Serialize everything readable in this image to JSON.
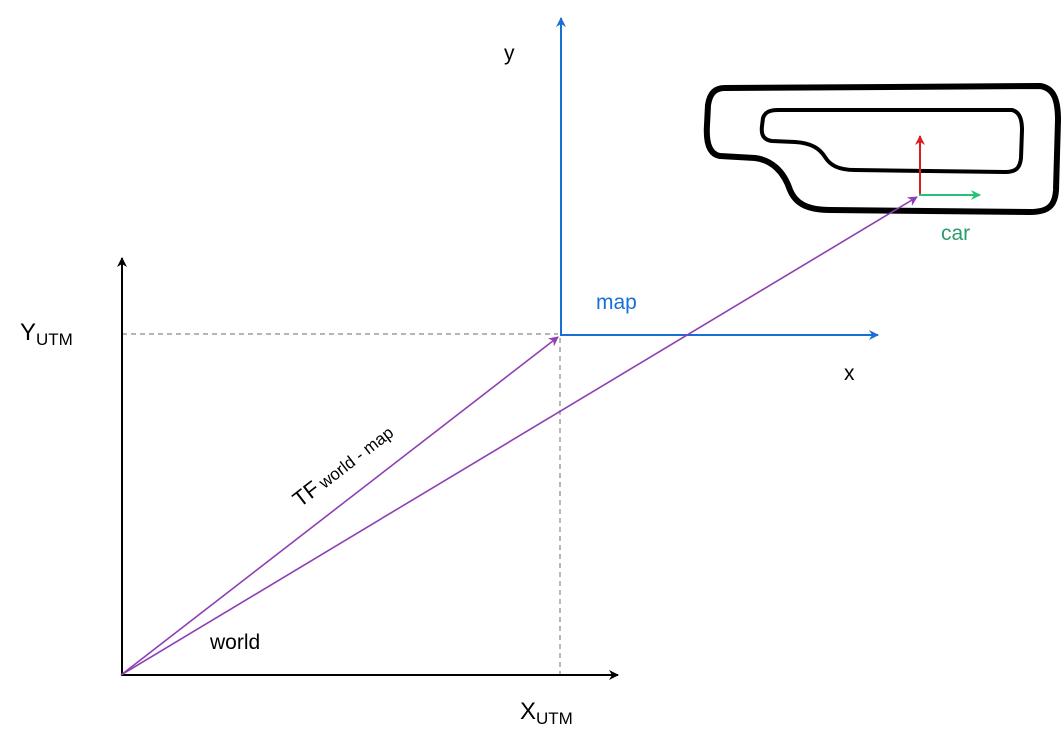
{
  "colors": {
    "world_axes": "#000000",
    "map_axes": "#1a6fd6",
    "transform_arrows": "#8e3fb3",
    "car_x_axis": "#27c27a",
    "car_y_axis": "#d9201e",
    "track": "#000000",
    "guide_lines": "#888888",
    "car_label": "#2e9c6a"
  },
  "labels": {
    "y_utm_main": "Y",
    "y_utm_sub": "UTM",
    "x_utm_main": "X",
    "x_utm_sub": "UTM",
    "world": "world",
    "map": "map",
    "map_x": "x",
    "map_y": "y",
    "car": "car",
    "tf_main": "TF",
    "tf_sub": "world - map"
  }
}
